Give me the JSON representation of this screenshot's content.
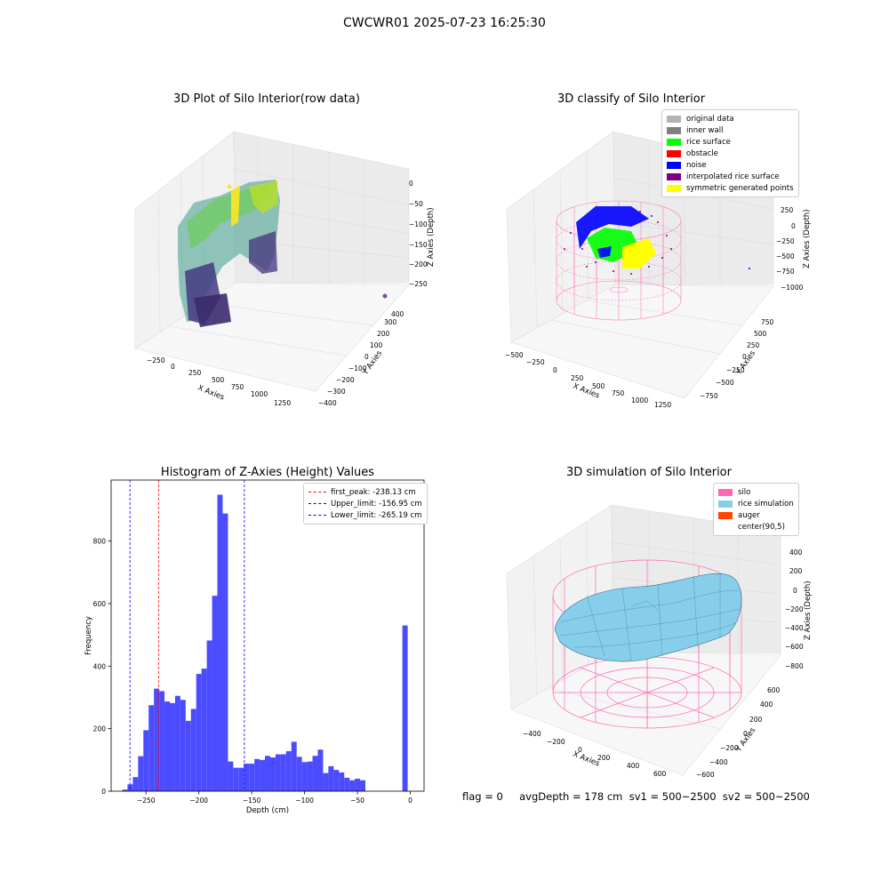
{
  "suptitle": "CWCWR01 2025-07-23 16:25:30",
  "chart_data": [
    {
      "type": "scatter",
      "title": "3D Plot of Silo Interior(row data)",
      "xlabel": "X Axies",
      "ylabel": "Y Axies",
      "zlabel": "Z Axies (Depth)",
      "x_ticks": [
        "−250",
        "0",
        "250",
        "500",
        "750",
        "1000",
        "1250"
      ],
      "y_ticks": [
        "−400",
        "−300",
        "−200",
        "−100",
        "0",
        "100",
        "200",
        "300",
        "400"
      ],
      "z_ticks": [
        "0",
        "−50",
        "−100",
        "−150",
        "−200",
        "−250"
      ],
      "colormap": "viridis"
    },
    {
      "type": "scatter",
      "title": "3D classify of Silo Interior",
      "xlabel": "X Axies",
      "ylabel": "Y Axies",
      "zlabel": "Z Axies (Depth)",
      "x_ticks": [
        "−500",
        "−250",
        "0",
        "250",
        "500",
        "750",
        "1000",
        "1250"
      ],
      "y_ticks": [
        "−750",
        "−500",
        "−250",
        "0",
        "250",
        "500",
        "750"
      ],
      "z_ticks": [
        "500",
        "250",
        "0",
        "−250",
        "−500",
        "−750",
        "−1000"
      ],
      "legend": [
        {
          "label": "original data",
          "color": "#b3b3b3"
        },
        {
          "label": "inner wall",
          "color": "#808080"
        },
        {
          "label": "rice surface",
          "color": "#00ff00"
        },
        {
          "label": "obstacle",
          "color": "#ff0000"
        },
        {
          "label": "noise",
          "color": "#0000ff"
        },
        {
          "label": "interpolated rice surface",
          "color": "#800080"
        },
        {
          "label": "symmetric generated points",
          "color": "#ffff00"
        }
      ]
    },
    {
      "type": "bar",
      "title": "Histogram of Z-Axies (Height) Values",
      "xlabel": "Depth (cm)",
      "ylabel": "Frequency",
      "xlim": [
        -283,
        13
      ],
      "ylim": [
        0,
        995
      ],
      "bin_width": 5,
      "x_ticks": [
        -250,
        -200,
        -150,
        -100,
        -50,
        0
      ],
      "x_tick_labels": [
        "−250",
        "−200",
        "−150",
        "−100",
        "−50",
        "0"
      ],
      "y_ticks": [
        0,
        200,
        400,
        600,
        800
      ],
      "bar_color": "#4b4bff",
      "bins": [
        {
          "x": -270,
          "value": 5
        },
        {
          "x": -265,
          "value": 22
        },
        {
          "x": -260,
          "value": 45
        },
        {
          "x": -255,
          "value": 112
        },
        {
          "x": -250,
          "value": 195
        },
        {
          "x": -245,
          "value": 275
        },
        {
          "x": -240,
          "value": 328
        },
        {
          "x": -235,
          "value": 320
        },
        {
          "x": -230,
          "value": 287
        },
        {
          "x": -225,
          "value": 282
        },
        {
          "x": -220,
          "value": 305
        },
        {
          "x": -215,
          "value": 292
        },
        {
          "x": -210,
          "value": 225
        },
        {
          "x": -205,
          "value": 263
        },
        {
          "x": -200,
          "value": 375
        },
        {
          "x": -195,
          "value": 392
        },
        {
          "x": -190,
          "value": 482
        },
        {
          "x": -185,
          "value": 625
        },
        {
          "x": -180,
          "value": 948
        },
        {
          "x": -175,
          "value": 888
        },
        {
          "x": -170,
          "value": 95
        },
        {
          "x": -165,
          "value": 75
        },
        {
          "x": -160,
          "value": 75
        },
        {
          "x": -155,
          "value": 88
        },
        {
          "x": -150,
          "value": 88
        },
        {
          "x": -145,
          "value": 103
        },
        {
          "x": -140,
          "value": 100
        },
        {
          "x": -135,
          "value": 113
        },
        {
          "x": -130,
          "value": 108
        },
        {
          "x": -125,
          "value": 118
        },
        {
          "x": -120,
          "value": 118
        },
        {
          "x": -115,
          "value": 128
        },
        {
          "x": -110,
          "value": 158
        },
        {
          "x": -105,
          "value": 110
        },
        {
          "x": -100,
          "value": 93
        },
        {
          "x": -95,
          "value": 95
        },
        {
          "x": -90,
          "value": 113
        },
        {
          "x": -85,
          "value": 133
        },
        {
          "x": -80,
          "value": 58
        },
        {
          "x": -75,
          "value": 80
        },
        {
          "x": -70,
          "value": 68
        },
        {
          "x": -65,
          "value": 60
        },
        {
          "x": -60,
          "value": 43
        },
        {
          "x": -55,
          "value": 35
        },
        {
          "x": -50,
          "value": 40
        },
        {
          "x": -45,
          "value": 35
        },
        {
          "x": -40,
          "value": 0
        },
        {
          "x": -35,
          "value": 0
        },
        {
          "x": -5,
          "value": 530
        }
      ],
      "vlines": [
        {
          "label": "first_peak: -238.13 cm",
          "x": -238.13,
          "color": "#ff0000"
        },
        {
          "label": "Upper_limit: -156.95 cm",
          "x": -156.95,
          "color": "#0000ff"
        },
        {
          "label": "Lower_limit: -265.19 cm",
          "x": -265.19,
          "color": "#0000ff"
        }
      ]
    },
    {
      "type": "surface",
      "title": "3D simulation of Silo Interior",
      "xlabel": "X Axies",
      "ylabel": "Y Axies",
      "zlabel": "Z Axies (Depth)",
      "x_ticks": [
        "−400",
        "−200",
        "0",
        "200",
        "400",
        "600"
      ],
      "y_ticks": [
        "−600",
        "−400",
        "−200",
        "0",
        "200",
        "400",
        "600"
      ],
      "z_ticks": [
        "400",
        "200",
        "0",
        "−200",
        "−400",
        "−600",
        "−800"
      ],
      "legend": [
        {
          "label": "silo",
          "color": "#ff69b4"
        },
        {
          "label": "rice simulation",
          "color": "#87ceeb"
        },
        {
          "label": "auger",
          "color": "#ff4500"
        },
        {
          "label": "center(90,5)",
          "color": ""
        }
      ]
    }
  ],
  "footer": "flag = 0     avgDepth = 178 cm  sv1 = 500~2500  sv2 = 500~2500"
}
